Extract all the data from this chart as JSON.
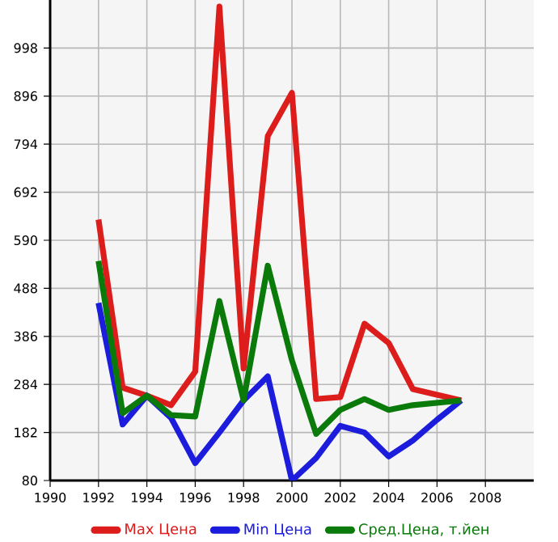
{
  "chart_data": {
    "type": "line",
    "xlim": [
      1990,
      2010
    ],
    "xticks": [
      1990,
      1992,
      1994,
      1996,
      1998,
      2000,
      2002,
      2004,
      2006,
      2008
    ],
    "ylim": [
      80,
      1100
    ],
    "yticks": [
      80,
      182,
      284,
      386,
      488,
      590,
      692,
      794,
      896,
      998
    ],
    "grid": true,
    "legend": "bottom",
    "line_style": "solid",
    "series": [
      {
        "name": "Max Цена",
        "color": "#dd1c1c",
        "x": [
          1992,
          1993,
          1994,
          1995,
          1996,
          1997,
          1998,
          1999,
          2000,
          2001,
          2002,
          2003,
          2004,
          2005,
          2007
        ],
        "values": [
          634,
          277,
          260,
          240,
          311,
          1086,
          318,
          811,
          903,
          253,
          257,
          413,
          372,
          274,
          250
        ]
      },
      {
        "name": "Min Цена",
        "color": "#1c1cdc",
        "x": [
          1992,
          1993,
          1994,
          1995,
          1996,
          1997,
          1998,
          1999,
          2000,
          2001,
          2002,
          2003,
          2004,
          2005,
          2006,
          2007
        ],
        "values": [
          457,
          199,
          260,
          213,
          117,
          182,
          250,
          301,
          80,
          128,
          196,
          182,
          131,
          165,
          209,
          250
        ]
      },
      {
        "name": "Сред.Цена, т.йен",
        "color": "#0a7a0a",
        "x": [
          1992,
          1993,
          1994,
          1995,
          1996,
          1997,
          1998,
          1999,
          2000,
          2001,
          2002,
          2003,
          2004,
          2005,
          2007
        ],
        "values": [
          546,
          223,
          260,
          219,
          216,
          461,
          250,
          536,
          335,
          179,
          230,
          253,
          230,
          240,
          250
        ]
      }
    ]
  }
}
